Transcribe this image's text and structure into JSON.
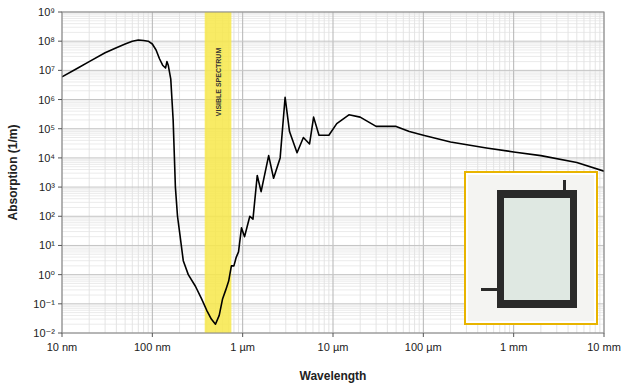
{
  "chart_data": {
    "type": "line",
    "x_label": "Wavelength",
    "y_label": "Absorption (1/m)",
    "log": true,
    "grid": true,
    "xlim": [
      1e-08,
      0.01
    ],
    "ylim": [
      0.01,
      1000000000
    ],
    "xticks": [
      {
        "value": 1e-08,
        "label": "10 nm"
      },
      {
        "value": 1e-07,
        "label": "100 nm"
      },
      {
        "value": 1e-06,
        "label": "1 µm"
      },
      {
        "value": 1e-05,
        "label": "10 µm"
      },
      {
        "value": 0.0001,
        "label": "100 µm"
      },
      {
        "value": 0.001,
        "label": "1 mm"
      },
      {
        "value": 0.01,
        "label": "10 mm"
      }
    ],
    "yticks": [
      {
        "value": 0.01,
        "label": "10⁻²"
      },
      {
        "value": 0.1,
        "label": "10⁻¹"
      },
      {
        "value": 1,
        "label": "10⁰"
      },
      {
        "value": 10,
        "label": "10¹"
      },
      {
        "value": 100,
        "label": "10²"
      },
      {
        "value": 1000,
        "label": "10³"
      },
      {
        "value": 10000,
        "label": "10⁴"
      },
      {
        "value": 100000,
        "label": "10⁵"
      },
      {
        "value": 1000000,
        "label": "10⁶"
      },
      {
        "value": 10000000,
        "label": "10⁷"
      },
      {
        "value": 100000000,
        "label": "10⁸"
      },
      {
        "value": 1000000000,
        "label": "10⁹"
      }
    ],
    "annotations": [
      {
        "text": "VISIBLE SPECTRUM",
        "x": [
          3.8e-07,
          7.5e-07
        ],
        "color": "#f7e84a"
      }
    ],
    "x": [
      1e-08,
      1.5e-08,
      2e-08,
      3e-08,
      4e-08,
      5e-08,
      6e-08,
      7e-08,
      8e-08,
      9e-08,
      1e-07,
      1.1e-07,
      1.2e-07,
      1.3e-07,
      1.4e-07,
      1.45e-07,
      1.5e-07,
      1.6e-07,
      1.7e-07,
      1.8e-07,
      1.9e-07,
      2e-07,
      2.2e-07,
      2.5e-07,
      3e-07,
      3.5e-07,
      4e-07,
      4.5e-07,
      5e-07,
      5.5e-07,
      6e-07,
      6.5e-07,
      7e-07,
      7.5e-07,
      8e-07,
      8.5e-07,
      9e-07,
      9.7e-07,
      1.05e-06,
      1.2e-06,
      1.3e-06,
      1.45e-06,
      1.6e-06,
      1.94e-06,
      2.2e-06,
      2.6e-06,
      2.95e-06,
      3.3e-06,
      4e-06,
      4.7e-06,
      5.5e-06,
      6.1e-06,
      7e-06,
      9e-06,
      1.1e-05,
      1.5e-05,
      2e-05,
      3e-05,
      5e-05,
      7e-05,
      0.0001,
      0.0002,
      0.0005,
      0.001,
      0.002,
      0.005,
      0.01
    ],
    "series": [
      {
        "color": "#000000",
        "values": [
          6000000,
          12000000,
          20000000,
          40000000,
          60000000,
          80000000,
          100000000,
          110000000,
          105000000,
          100000000,
          80000000,
          50000000,
          25000000,
          15000000,
          12000000,
          20000000,
          15000000,
          5000000,
          200000,
          1000,
          100,
          30,
          3,
          1,
          0.4,
          0.15,
          0.06,
          0.03,
          0.02,
          0.04,
          0.15,
          0.3,
          0.6,
          2,
          2,
          4,
          6,
          40,
          20,
          100,
          80,
          2500,
          700,
          12000,
          2000,
          10000,
          1200000,
          80000,
          15000,
          50000,
          30000,
          250000,
          60000,
          60000,
          150000,
          300000,
          250000,
          120000,
          120000,
          80000,
          60000,
          35000,
          22000,
          16000,
          12000,
          7000,
          3500
        ]
      }
    ]
  }
}
